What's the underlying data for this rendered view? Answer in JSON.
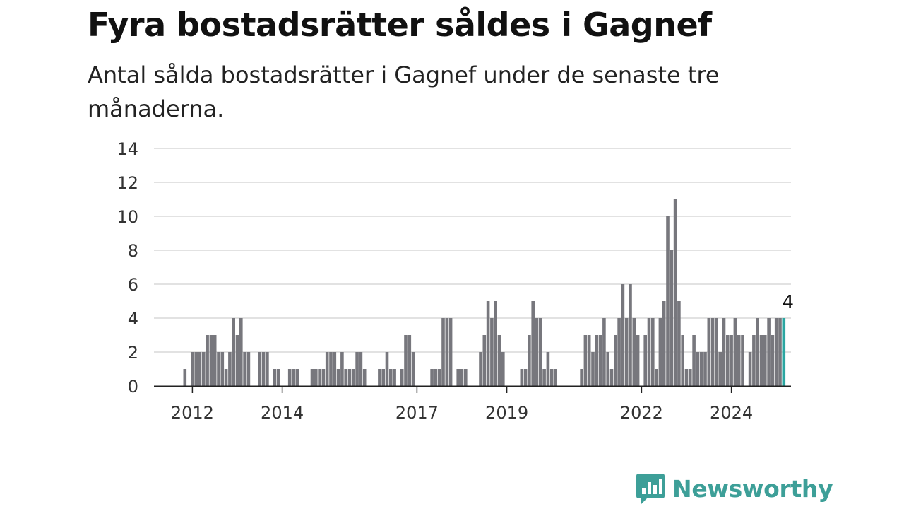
{
  "title": "Fyra bostadsrätter såldes i Gagnef",
  "subtitle": "Antal sålda bostadsrätter i Gagnef under de senaste tre månaderna.",
  "brand": {
    "name": "Newsworthy",
    "color": "#3d9f98",
    "icon": "bar-chart-speech-bubble-icon"
  },
  "colors": {
    "bar": "#77777d",
    "highlight": "#2aa6a1",
    "grid": "#d9d9d9",
    "axis": "#222222"
  },
  "chart_data": {
    "type": "bar",
    "title": "Fyra bostadsrätter såldes i Gagnef",
    "subtitle": "Antal sålda bostadsrätter i Gagnef under de senaste tre månaderna.",
    "xlabel": "",
    "ylabel": "",
    "ylim": [
      0,
      14
    ],
    "yticks": [
      0,
      2,
      4,
      6,
      8,
      10,
      12,
      14
    ],
    "xticks": [
      "2012",
      "2014",
      "2017",
      "2019",
      "2022",
      "2024"
    ],
    "grid": true,
    "x_start": "2011-11",
    "x_end": "2024-12",
    "highlight_last": true,
    "last_value_label": "4",
    "values": [
      1,
      0,
      2,
      2,
      2,
      2,
      3,
      3,
      3,
      2,
      2,
      1,
      2,
      4,
      3,
      4,
      2,
      2,
      0,
      0,
      2,
      2,
      2,
      0,
      1,
      1,
      0,
      0,
      1,
      1,
      1,
      0,
      0,
      0,
      1,
      1,
      1,
      1,
      2,
      2,
      2,
      1,
      2,
      1,
      1,
      1,
      2,
      2,
      1,
      0,
      0,
      0,
      1,
      1,
      2,
      1,
      1,
      0,
      1,
      3,
      3,
      2,
      0,
      0,
      0,
      0,
      1,
      1,
      1,
      4,
      4,
      4,
      0,
      1,
      1,
      1,
      0,
      0,
      0,
      2,
      3,
      5,
      4,
      5,
      3,
      2,
      0,
      0,
      0,
      0,
      1,
      1,
      3,
      5,
      4,
      4,
      1,
      2,
      1,
      1,
      0,
      0,
      0,
      0,
      0,
      0,
      1,
      3,
      3,
      2,
      3,
      3,
      4,
      2,
      1,
      3,
      4,
      6,
      4,
      6,
      4,
      3,
      0,
      3,
      4,
      4,
      1,
      4,
      5,
      10,
      8,
      11,
      5,
      3,
      1,
      1,
      3,
      2,
      2,
      2,
      4,
      4,
      4,
      2,
      4,
      3,
      3,
      4,
      3,
      3,
      0,
      2,
      3,
      4,
      3,
      3,
      4,
      3,
      4,
      4,
      4
    ]
  }
}
